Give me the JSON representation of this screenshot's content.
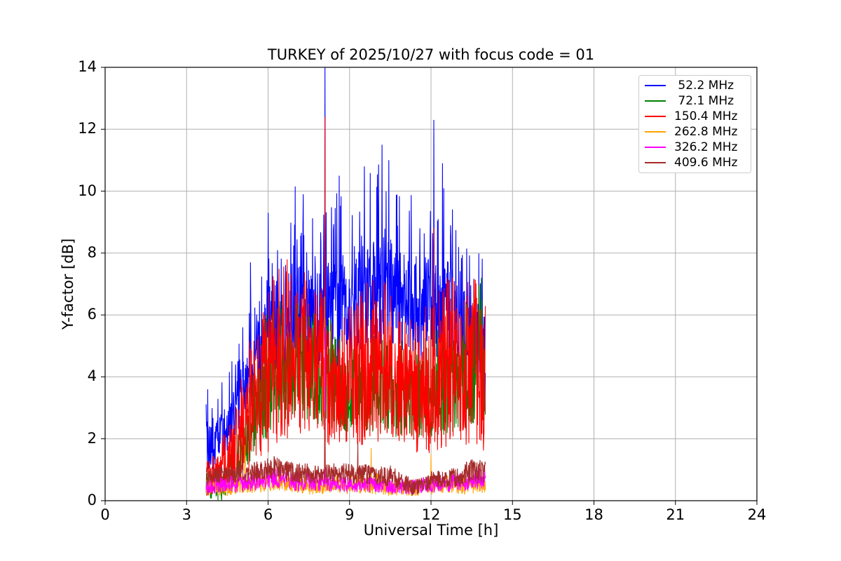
{
  "chart_data": {
    "type": "line",
    "title": "TURKEY of 2025/10/27 with focus code = 01",
    "xlabel": "Universal Time [h]",
    "ylabel": "Y-factor [dB]",
    "xlim": [
      0,
      24
    ],
    "ylim": [
      0,
      14
    ],
    "xticks": [
      0,
      3,
      6,
      9,
      12,
      15,
      18,
      21,
      24
    ],
    "yticks": [
      0,
      2,
      4,
      6,
      8,
      10,
      12,
      14
    ],
    "grid": true,
    "grid_color": "#b0b0b0",
    "legend_position": "upper right",
    "data_hour_range": [
      3.72,
      14.0
    ],
    "envelope_note": "noisy traces summarized as [hour, min_dB, max_dB] envelopes plus [hour, dB] spikes",
    "series": [
      {
        "name": " 52.2 MHz",
        "color": "#0000ff",
        "envelope": [
          [
            3.7,
            0.9,
            3.4
          ],
          [
            4.0,
            0.9,
            3.3
          ],
          [
            4.5,
            1.5,
            4.3
          ],
          [
            5.0,
            2.4,
            5.4
          ],
          [
            5.5,
            3.2,
            7.0
          ],
          [
            6.0,
            4.0,
            8.8
          ],
          [
            6.5,
            4.3,
            8.6
          ],
          [
            7.0,
            4.6,
            9.8
          ],
          [
            7.5,
            4.4,
            9.4
          ],
          [
            8.0,
            4.4,
            9.2
          ],
          [
            8.5,
            4.3,
            10.2
          ],
          [
            9.0,
            4.4,
            9.6
          ],
          [
            9.5,
            4.8,
            10.4
          ],
          [
            10.0,
            4.9,
            10.9
          ],
          [
            10.5,
            4.9,
            10.8
          ],
          [
            11.0,
            4.5,
            10.5
          ],
          [
            11.5,
            4.3,
            9.6
          ],
          [
            12.0,
            4.2,
            10.0
          ],
          [
            12.5,
            4.2,
            10.2
          ],
          [
            13.0,
            4.0,
            9.2
          ],
          [
            13.5,
            3.6,
            8.2
          ],
          [
            14.0,
            2.8,
            7.9
          ]
        ],
        "spikes": [
          [
            3.78,
            3.6
          ],
          [
            5.35,
            7.7
          ],
          [
            6.0,
            9.3
          ],
          [
            7.0,
            10.15
          ],
          [
            7.3,
            9.9
          ],
          [
            8.1,
            14.0
          ],
          [
            8.62,
            10.5
          ],
          [
            9.55,
            10.8
          ],
          [
            10.2,
            11.5
          ],
          [
            10.45,
            11.0
          ],
          [
            12.1,
            12.3
          ],
          [
            12.42,
            10.9
          ]
        ]
      },
      {
        "name": " 72.1 MHz",
        "color": "#008000",
        "envelope": [
          [
            3.7,
            0.0,
            0.9
          ],
          [
            4.3,
            0.0,
            1.2
          ],
          [
            5.0,
            0.8,
            2.6
          ],
          [
            5.5,
            1.5,
            4.6
          ],
          [
            6.0,
            2.0,
            6.4
          ],
          [
            6.5,
            2.4,
            6.7
          ],
          [
            7.0,
            2.5,
            6.5
          ],
          [
            7.5,
            2.5,
            6.1
          ],
          [
            8.0,
            2.4,
            6.3
          ],
          [
            8.5,
            2.3,
            5.9
          ],
          [
            9.0,
            2.2,
            5.6
          ],
          [
            10.0,
            2.2,
            5.6
          ],
          [
            11.0,
            2.0,
            5.3
          ],
          [
            12.0,
            2.0,
            5.6
          ],
          [
            13.0,
            2.2,
            6.1
          ],
          [
            13.6,
            2.4,
            7.0
          ],
          [
            14.0,
            2.5,
            7.2
          ]
        ],
        "spikes": [
          [
            6.2,
            6.5
          ],
          [
            13.85,
            7.2
          ]
        ]
      },
      {
        "name": "150.4 MHz",
        "color": "#ff0000",
        "envelope": [
          [
            3.7,
            0.1,
            1.3
          ],
          [
            4.0,
            0.1,
            1.6
          ],
          [
            4.5,
            0.2,
            2.4
          ],
          [
            5.0,
            0.5,
            4.0
          ],
          [
            5.5,
            1.0,
            6.3
          ],
          [
            6.0,
            1.5,
            7.0
          ],
          [
            6.5,
            1.8,
            7.8
          ],
          [
            7.0,
            2.0,
            8.0
          ],
          [
            7.5,
            2.0,
            7.6
          ],
          [
            8.0,
            1.8,
            7.1
          ],
          [
            8.5,
            1.8,
            6.7
          ],
          [
            9.0,
            1.7,
            6.4
          ],
          [
            9.5,
            1.6,
            7.0
          ],
          [
            10.0,
            1.8,
            7.9
          ],
          [
            10.5,
            1.8,
            6.7
          ],
          [
            11.0,
            1.6,
            6.2
          ],
          [
            11.5,
            1.5,
            5.9
          ],
          [
            12.0,
            1.5,
            6.6
          ],
          [
            12.5,
            1.7,
            7.4
          ],
          [
            13.0,
            1.8,
            7.2
          ],
          [
            13.5,
            1.8,
            7.6
          ],
          [
            14.0,
            1.3,
            7.4
          ]
        ],
        "spikes": [
          [
            8.1,
            12.4
          ],
          [
            12.1,
            8.8
          ]
        ]
      },
      {
        "name": "262.8 MHz",
        "color": "#ffa500",
        "envelope": [
          [
            3.7,
            0.15,
            0.7
          ],
          [
            4.5,
            0.15,
            0.7
          ],
          [
            5.0,
            0.2,
            0.9
          ],
          [
            5.5,
            0.25,
            0.95
          ],
          [
            6.0,
            0.3,
            1.0
          ],
          [
            6.5,
            0.3,
            0.9
          ],
          [
            7.0,
            0.25,
            0.85
          ],
          [
            7.5,
            0.2,
            0.8
          ],
          [
            8.0,
            0.2,
            0.85
          ],
          [
            8.5,
            0.2,
            0.8
          ],
          [
            9.0,
            0.2,
            0.8
          ],
          [
            9.5,
            0.2,
            0.95
          ],
          [
            10.0,
            0.2,
            0.9
          ],
          [
            10.5,
            0.15,
            0.8
          ],
          [
            11.0,
            0.15,
            0.7
          ],
          [
            11.5,
            0.15,
            0.7
          ],
          [
            12.0,
            0.2,
            0.8
          ],
          [
            12.5,
            0.2,
            0.8
          ],
          [
            13.0,
            0.2,
            0.8
          ],
          [
            13.5,
            0.2,
            0.9
          ],
          [
            14.0,
            0.2,
            0.9
          ]
        ],
        "spikes": [
          [
            5.15,
            1.8
          ],
          [
            8.08,
            6.6
          ],
          [
            9.8,
            1.7
          ],
          [
            12.0,
            1.5
          ]
        ]
      },
      {
        "name": "326.2 MHz",
        "color": "#ff00ff",
        "envelope": [
          [
            3.7,
            0.2,
            0.7
          ],
          [
            4.5,
            0.25,
            0.8
          ],
          [
            5.5,
            0.3,
            0.95
          ],
          [
            6.0,
            0.4,
            1.1
          ],
          [
            6.5,
            0.4,
            1.0
          ],
          [
            7.0,
            0.3,
            0.95
          ],
          [
            7.5,
            0.3,
            0.9
          ],
          [
            8.0,
            0.3,
            0.9
          ],
          [
            8.5,
            0.3,
            0.85
          ],
          [
            9.0,
            0.25,
            0.8
          ],
          [
            10.0,
            0.25,
            0.8
          ],
          [
            11.0,
            0.2,
            0.7
          ],
          [
            12.0,
            0.25,
            0.8
          ],
          [
            13.0,
            0.3,
            0.9
          ],
          [
            13.6,
            0.35,
            1.0
          ],
          [
            14.0,
            0.4,
            1.1
          ]
        ],
        "spikes": [
          [
            8.09,
            5.6
          ]
        ]
      },
      {
        "name": "409.6 MHz",
        "color": "#a52a2a",
        "envelope": [
          [
            3.7,
            0.55,
            1.1
          ],
          [
            4.5,
            0.55,
            1.1
          ],
          [
            5.5,
            0.6,
            1.25
          ],
          [
            6.2,
            0.7,
            1.45
          ],
          [
            6.8,
            0.6,
            1.3
          ],
          [
            7.5,
            0.55,
            1.2
          ],
          [
            8.0,
            0.55,
            1.15
          ],
          [
            8.5,
            0.6,
            1.25
          ],
          [
            9.0,
            0.55,
            1.2
          ],
          [
            9.5,
            0.5,
            1.2
          ],
          [
            10.0,
            0.5,
            1.1
          ],
          [
            10.5,
            0.45,
            1.15
          ],
          [
            11.0,
            0.3,
            0.9
          ],
          [
            11.3,
            0.15,
            0.7
          ],
          [
            11.7,
            0.25,
            0.8
          ],
          [
            12.0,
            0.35,
            0.95
          ],
          [
            12.5,
            0.4,
            1.0
          ],
          [
            13.0,
            0.45,
            1.1
          ],
          [
            13.5,
            0.55,
            1.35
          ],
          [
            14.0,
            0.55,
            1.3
          ]
        ],
        "spikes": [
          [
            8.1,
            2.9
          ],
          [
            9.3,
            1.9
          ]
        ]
      }
    ]
  }
}
